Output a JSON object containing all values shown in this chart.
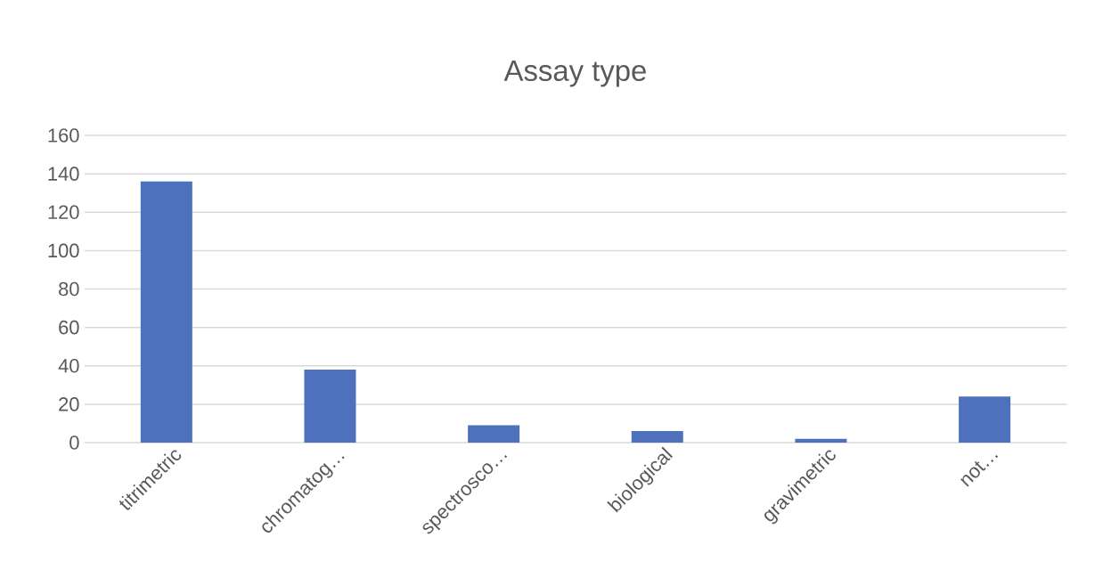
{
  "chart_data": {
    "type": "bar",
    "title": "Assay type",
    "categories": [
      "titrimetric",
      "chromatog…",
      "spectrosco…",
      "biological",
      "gravimetric",
      "not…"
    ],
    "values": [
      136,
      38,
      9,
      6,
      2,
      24
    ],
    "color": "#4e71be",
    "ylim": [
      0,
      160
    ],
    "yticks": [
      0,
      20,
      40,
      60,
      80,
      100,
      120,
      140,
      160
    ],
    "grid": "y"
  }
}
